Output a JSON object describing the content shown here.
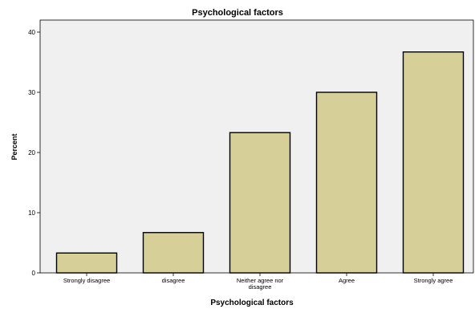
{
  "chart_data": {
    "type": "bar",
    "title": "Psychological factors",
    "xlabel": "Psychological factors",
    "ylabel": "Percent",
    "categories": [
      "Strongly disagree",
      "disagree",
      "Neither agree nor disagree",
      "Agree",
      "Strongly agree"
    ],
    "category_lines": [
      [
        "Strongly disagree"
      ],
      [
        "disagree"
      ],
      [
        "Neither agree nor",
        "disagree"
      ],
      [
        "Agree"
      ],
      [
        "Strongly agree"
      ]
    ],
    "values": [
      3.3,
      6.7,
      23.3,
      30.0,
      36.7
    ],
    "ylim": [
      0,
      42
    ],
    "yticks": [
      0,
      10,
      20,
      30,
      40
    ],
    "grid": false,
    "bar_color": "#d6cf98",
    "bar_edge_color": "#000000",
    "plot_bg_color": "#f0f0f0"
  }
}
